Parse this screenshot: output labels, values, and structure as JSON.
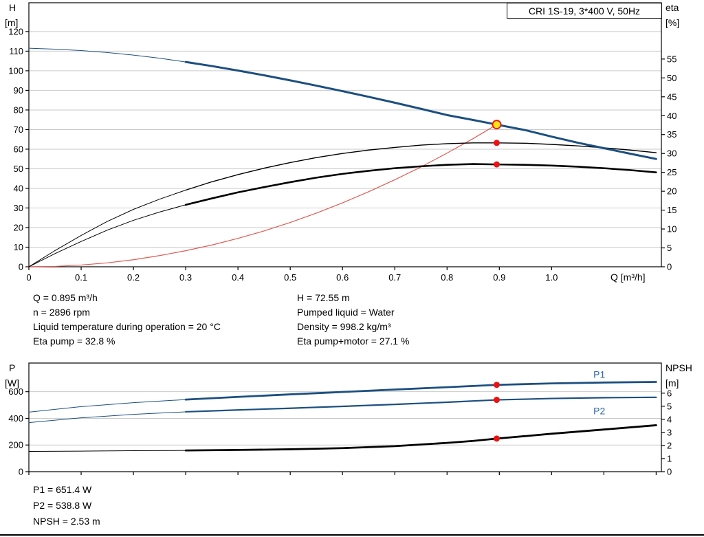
{
  "colors": {
    "blue": "#1c4f80",
    "black": "#000000",
    "red_curve": "#e05a52",
    "marker_red": "#ee1111",
    "marker_yellow": "#ffe412",
    "grid": "#c9c9c9",
    "axis": "#000000",
    "label_blue": "#2b66ac"
  },
  "info_top": {
    "left": [
      "Q = 0.895 m³/h",
      "n = 2896 rpm",
      "Liquid temperature during operation = 20 °C",
      "Eta pump = 32.8 %"
    ],
    "right": [
      "H = 72.55 m",
      "Pumped liquid = Water",
      "Density = 998.2 kg/m³",
      "Eta pump+motor = 27.1 %"
    ]
  },
  "info_bottom": [
    "P1 = 651.4 W",
    "P2 = 538.8 W",
    "NPSH = 2.53 m"
  ],
  "chart_data": [
    {
      "type": "line",
      "title": "CRI 1S-19, 3*400 V, 50Hz",
      "x_label": "Q [m³/h]",
      "x_range": [
        0,
        1.21
      ],
      "x_ticks": [
        0,
        0.1,
        0.2,
        0.3,
        0.4,
        0.5,
        0.6,
        0.7,
        0.8,
        0.9,
        1.0
      ],
      "x_tick_labels": [
        "0",
        "0.1",
        "0.2",
        "0.3",
        "0.4",
        "0.5",
        "0.6",
        "0.7",
        "0.8",
        "0.9",
        "1.0"
      ],
      "left_axis": {
        "label": [
          "H",
          "[m]"
        ],
        "range": [
          0,
          134.7
        ],
        "ticks": [
          0,
          10,
          20,
          30,
          40,
          50,
          60,
          70,
          80,
          90,
          100,
          110,
          120
        ]
      },
      "right_axis": {
        "label": [
          "eta",
          "[%]"
        ],
        "range": [
          0,
          69.9
        ],
        "ticks": [
          0,
          5,
          10,
          15,
          20,
          25,
          30,
          35,
          40,
          45,
          50,
          55
        ]
      },
      "grid": "horizontal",
      "legend": "none",
      "series": [
        {
          "name": "system-duty-curve",
          "axis": "left",
          "color": "#e05a52",
          "width": 1.2,
          "points": [
            [
              0,
              0
            ],
            [
              0.05,
              0.2
            ],
            [
              0.1,
              0.9
            ],
            [
              0.15,
              2.0
            ],
            [
              0.2,
              3.6
            ],
            [
              0.25,
              5.7
            ],
            [
              0.3,
              8.2
            ],
            [
              0.35,
              11.1
            ],
            [
              0.4,
              14.5
            ],
            [
              0.45,
              18.3
            ],
            [
              0.5,
              22.6
            ],
            [
              0.55,
              27.4
            ],
            [
              0.6,
              32.6
            ],
            [
              0.65,
              38.3
            ],
            [
              0.7,
              44.4
            ],
            [
              0.75,
              50.9
            ],
            [
              0.8,
              58.0
            ],
            [
              0.85,
              65.4
            ],
            [
              0.895,
              72.55
            ]
          ]
        },
        {
          "name": "eta-pump",
          "axis": "right",
          "color": "#000000",
          "thin_width": 1,
          "thick_width": 1.4,
          "thick_from": 0.3,
          "points": [
            [
              0,
              0
            ],
            [
              0.05,
              4.3
            ],
            [
              0.1,
              8.3
            ],
            [
              0.15,
              12.0
            ],
            [
              0.2,
              15.2
            ],
            [
              0.25,
              17.9
            ],
            [
              0.3,
              20.3
            ],
            [
              0.35,
              22.5
            ],
            [
              0.4,
              24.4
            ],
            [
              0.45,
              26.1
            ],
            [
              0.5,
              27.6
            ],
            [
              0.55,
              28.9
            ],
            [
              0.6,
              30.0
            ],
            [
              0.65,
              30.9
            ],
            [
              0.7,
              31.6
            ],
            [
              0.75,
              32.2
            ],
            [
              0.8,
              32.6
            ],
            [
              0.85,
              32.8
            ],
            [
              0.895,
              32.8
            ],
            [
              0.95,
              32.7
            ],
            [
              1.0,
              32.4
            ],
            [
              1.05,
              32.0
            ],
            [
              1.1,
              31.5
            ],
            [
              1.15,
              30.9
            ],
            [
              1.2,
              30.2
            ]
          ]
        },
        {
          "name": "eta-pump-plus-motor",
          "axis": "right",
          "color": "#000000",
          "thin_width": 1,
          "thick_width": 2.6,
          "thick_from": 0.3,
          "points": [
            [
              0,
              0
            ],
            [
              0.05,
              3.5
            ],
            [
              0.1,
              6.7
            ],
            [
              0.15,
              9.7
            ],
            [
              0.2,
              12.3
            ],
            [
              0.25,
              14.5
            ],
            [
              0.3,
              16.4
            ],
            [
              0.35,
              18.1
            ],
            [
              0.4,
              19.7
            ],
            [
              0.45,
              21.1
            ],
            [
              0.5,
              22.4
            ],
            [
              0.55,
              23.6
            ],
            [
              0.6,
              24.6
            ],
            [
              0.65,
              25.4
            ],
            [
              0.7,
              26.1
            ],
            [
              0.75,
              26.6
            ],
            [
              0.8,
              27.0
            ],
            [
              0.85,
              27.2
            ],
            [
              0.895,
              27.1
            ],
            [
              0.95,
              27.0
            ],
            [
              1.0,
              26.8
            ],
            [
              1.05,
              26.5
            ],
            [
              1.1,
              26.1
            ],
            [
              1.15,
              25.6
            ],
            [
              1.2,
              25.0
            ]
          ]
        },
        {
          "name": "qh-pump-curve",
          "axis": "left",
          "color": "#1c4f80",
          "thin_width": 1,
          "thick_width": 3,
          "thick_from": 0.3,
          "points": [
            [
              0,
              111.5
            ],
            [
              0.05,
              111.0
            ],
            [
              0.1,
              110.3
            ],
            [
              0.15,
              109.3
            ],
            [
              0.2,
              108.0
            ],
            [
              0.25,
              106.4
            ],
            [
              0.3,
              104.5
            ],
            [
              0.35,
              102.4
            ],
            [
              0.4,
              100.1
            ],
            [
              0.45,
              97.7
            ],
            [
              0.5,
              95.1
            ],
            [
              0.55,
              92.4
            ],
            [
              0.6,
              89.6
            ],
            [
              0.65,
              86.7
            ],
            [
              0.7,
              83.7
            ],
            [
              0.75,
              80.6
            ],
            [
              0.8,
              77.4
            ],
            [
              0.85,
              74.9
            ],
            [
              0.895,
              72.55
            ],
            [
              0.95,
              69.7
            ],
            [
              1.0,
              66.4
            ],
            [
              1.05,
              63.3
            ],
            [
              1.1,
              60.5
            ],
            [
              1.15,
              57.7
            ],
            [
              1.2,
              55.0
            ]
          ]
        }
      ],
      "markers": [
        {
          "q": 0.895,
          "v": 32.8,
          "axis": "right",
          "kind": "dot"
        },
        {
          "q": 0.895,
          "v": 27.1,
          "axis": "right",
          "kind": "dot"
        },
        {
          "q": 0.895,
          "v": 72.55,
          "axis": "left",
          "kind": "duty"
        }
      ]
    },
    {
      "type": "line",
      "title": "",
      "x_label": "",
      "x_range": [
        0,
        1.21
      ],
      "x_ticks": [
        0,
        0.1,
        0.2,
        0.3,
        0.4,
        0.5,
        0.6,
        0.7,
        0.8,
        0.9,
        1.0,
        1.1,
        1.2
      ],
      "x_tick_labels": null,
      "left_axis": {
        "label": [
          "P",
          "[W]"
        ],
        "range": [
          0,
          815
        ],
        "ticks": [
          0,
          200,
          400,
          600
        ]
      },
      "right_axis": {
        "label": [
          "NPSH",
          "[m]"
        ],
        "range": [
          0,
          8.3
        ],
        "ticks": [
          0,
          1,
          2,
          3,
          4,
          5,
          6
        ]
      },
      "grid": "horizontal",
      "legend": "none",
      "series": [
        {
          "name": "p1-power",
          "axis": "left",
          "color": "#1c4f80",
          "thin_width": 1,
          "thick_width": 2.8,
          "thick_from": 0.3,
          "points": [
            [
              0,
              447
            ],
            [
              0.1,
              488
            ],
            [
              0.2,
              518
            ],
            [
              0.3,
              541
            ],
            [
              0.4,
              561
            ],
            [
              0.5,
              580
            ],
            [
              0.6,
              598
            ],
            [
              0.7,
              616
            ],
            [
              0.8,
              634
            ],
            [
              0.895,
              651.4
            ],
            [
              0.95,
              657
            ],
            [
              1.0,
              662
            ],
            [
              1.1,
              669
            ],
            [
              1.2,
              673
            ]
          ]
        },
        {
          "name": "p2-power",
          "axis": "left",
          "color": "#1c4f80",
          "thin_width": 1,
          "thick_width": 2.2,
          "thick_from": 0.3,
          "points": [
            [
              0,
              368
            ],
            [
              0.1,
              404
            ],
            [
              0.2,
              430
            ],
            [
              0.3,
              449
            ],
            [
              0.4,
              463
            ],
            [
              0.5,
              476
            ],
            [
              0.6,
              490
            ],
            [
              0.7,
              505
            ],
            [
              0.8,
              521
            ],
            [
              0.895,
              538.8
            ],
            [
              0.95,
              544
            ],
            [
              1.0,
              549
            ],
            [
              1.1,
              555
            ],
            [
              1.2,
              558
            ]
          ]
        },
        {
          "name": "npsh",
          "axis": "right",
          "color": "#000000",
          "thin_width": 1,
          "thick_width": 2.8,
          "thick_from": 0.3,
          "points": [
            [
              0,
              1.55
            ],
            [
              0.1,
              1.57
            ],
            [
              0.2,
              1.6
            ],
            [
              0.3,
              1.62
            ],
            [
              0.4,
              1.66
            ],
            [
              0.5,
              1.71
            ],
            [
              0.6,
              1.8
            ],
            [
              0.7,
              1.95
            ],
            [
              0.8,
              2.2
            ],
            [
              0.85,
              2.35
            ],
            [
              0.895,
              2.53
            ],
            [
              0.95,
              2.72
            ],
            [
              1.0,
              2.9
            ],
            [
              1.1,
              3.22
            ],
            [
              1.2,
              3.55
            ]
          ]
        }
      ],
      "markers": [
        {
          "q": 0.895,
          "v": 651.4,
          "axis": "left",
          "kind": "dot"
        },
        {
          "q": 0.895,
          "v": 538.8,
          "axis": "left",
          "kind": "dot"
        },
        {
          "q": 0.895,
          "v": 2.53,
          "axis": "right",
          "kind": "dot"
        }
      ],
      "annotations": [
        {
          "text": "P1",
          "q": 1.08,
          "v": 703,
          "axis": "left"
        },
        {
          "text": "P2",
          "q": 1.08,
          "v": 430,
          "axis": "left"
        }
      ]
    }
  ]
}
